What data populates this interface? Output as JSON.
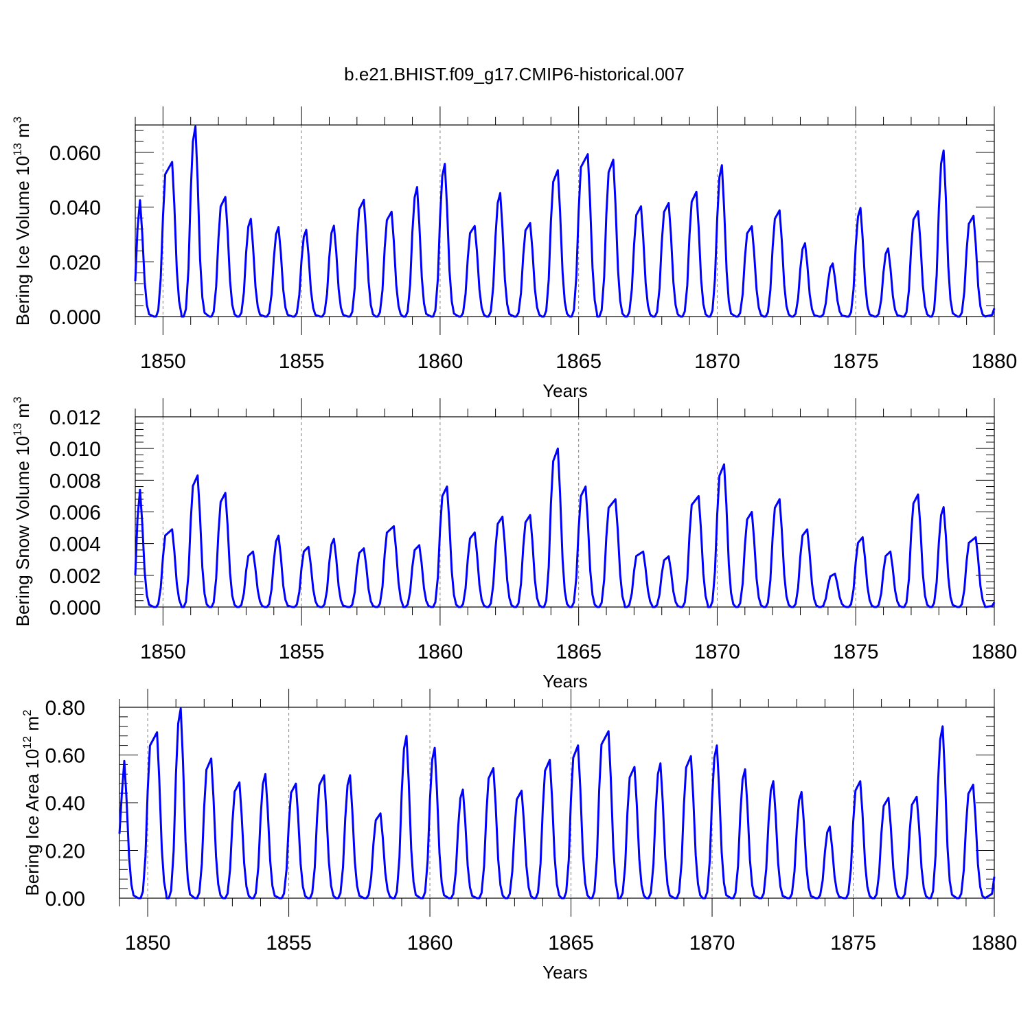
{
  "title": "b.e21.BHIST.f09_g17.CMIP6-historical.007",
  "colors": {
    "series": "#0000ff",
    "axis": "#000000",
    "grid": "#808080"
  },
  "chart_data": [
    {
      "type": "line",
      "title": "b.e21.BHIST.f09_g17.CMIP6-historical.007",
      "xlabel": "Years",
      "ylabel": "Bering Ice Volume 10",
      "ylabel_exp": "13",
      "ylabel_unit": " m",
      "ylabel_unit_exp": "3",
      "xlim": [
        1849,
        1880
      ],
      "ylim": [
        0,
        0.07
      ],
      "xticks": [
        1850,
        1855,
        1860,
        1865,
        1870,
        1875,
        1880
      ],
      "xtick_labels": [
        "1850",
        "1855",
        "1860",
        "1865",
        "1870",
        "1875",
        "1880"
      ],
      "yticks": [
        0,
        0.02,
        0.04,
        0.06
      ],
      "ytick_labels": [
        "0.000",
        "0.020",
        "0.040",
        "0.060"
      ],
      "grid": "dashed vertical at every 5 years",
      "series": [
        {
          "name": "Bering Ice Volume",
          "peak_years": [
            1849.17,
            1850.33,
            1851.17,
            1852.25,
            1853.17,
            1854.17,
            1855.17,
            1856.17,
            1857.25,
            1858.25,
            1859.17,
            1860.17,
            1861.25,
            1862.17,
            1863.25,
            1864.25,
            1865.33,
            1866.25,
            1867.25,
            1868.25,
            1869.25,
            1870.17,
            1871.25,
            1872.25,
            1873.17,
            1874.17,
            1875.17,
            1876.17,
            1877.25,
            1878.17,
            1879.25
          ],
          "peaks": [
            0.0425,
            0.0565,
            0.0695,
            0.0437,
            0.0357,
            0.0327,
            0.0317,
            0.0332,
            0.0426,
            0.0383,
            0.0473,
            0.0558,
            0.0331,
            0.0451,
            0.0342,
            0.0535,
            0.0593,
            0.0573,
            0.0403,
            0.0415,
            0.0456,
            0.0553,
            0.033,
            0.0388,
            0.0268,
            0.0194,
            0.0397,
            0.0249,
            0.0385,
            0.0607,
            0.0368
          ],
          "start_value": 0.013,
          "end_value": 0.003
        }
      ]
    },
    {
      "type": "line",
      "xlabel": "Years",
      "ylabel": "Bering Snow Volume 10",
      "ylabel_exp": "13",
      "ylabel_unit": " m",
      "ylabel_unit_exp": "3",
      "xlim": [
        1849,
        1880
      ],
      "ylim": [
        0,
        0.012
      ],
      "xticks": [
        1850,
        1855,
        1860,
        1865,
        1870,
        1875,
        1880
      ],
      "xtick_labels": [
        "1850",
        "1855",
        "1860",
        "1865",
        "1870",
        "1875",
        "1880"
      ],
      "yticks": [
        0,
        0.002,
        0.004,
        0.006,
        0.008,
        0.01,
        0.012
      ],
      "ytick_labels": [
        "0.000",
        "0.002",
        "0.004",
        "0.006",
        "0.008",
        "0.010",
        "0.012"
      ],
      "grid": "dashed vertical at every 5 years",
      "series": [
        {
          "name": "Bering Snow Volume",
          "peak_years": [
            1849.17,
            1850.33,
            1851.25,
            1852.25,
            1853.25,
            1854.17,
            1855.25,
            1856.17,
            1857.25,
            1858.33,
            1859.25,
            1860.25,
            1861.25,
            1862.25,
            1863.25,
            1864.25,
            1865.25,
            1866.33,
            1867.33,
            1868.25,
            1869.33,
            1870.25,
            1871.25,
            1872.25,
            1873.25,
            1874.25,
            1875.25,
            1876.25,
            1877.25,
            1878.17,
            1879.33
          ],
          "peaks": [
            0.0074,
            0.0049,
            0.0083,
            0.0072,
            0.0035,
            0.0045,
            0.0038,
            0.0043,
            0.0037,
            0.0051,
            0.0039,
            0.0076,
            0.0047,
            0.0057,
            0.0058,
            0.01,
            0.0076,
            0.0068,
            0.0035,
            0.0032,
            0.007,
            0.009,
            0.006,
            0.0068,
            0.0049,
            0.0021,
            0.0044,
            0.0035,
            0.0071,
            0.0063,
            0.0044
          ],
          "start_value": 0.002,
          "end_value": 0.0003
        }
      ]
    },
    {
      "type": "line",
      "xlabel": "Years",
      "ylabel": "Bering Ice Area 10",
      "ylabel_exp": "12",
      "ylabel_unit": " m",
      "ylabel_unit_exp": "2",
      "xlim": [
        1849,
        1880
      ],
      "ylim": [
        0,
        0.8
      ],
      "xticks": [
        1850,
        1855,
        1860,
        1865,
        1870,
        1875,
        1880
      ],
      "xtick_labels": [
        "1850",
        "1855",
        "1860",
        "1865",
        "1870",
        "1875",
        "1880"
      ],
      "yticks": [
        0,
        0.2,
        0.4,
        0.6,
        0.8
      ],
      "ytick_labels": [
        "0.00",
        "0.20",
        "0.40",
        "0.60",
        "0.80"
      ],
      "grid": "dashed vertical at every 5 years",
      "series": [
        {
          "name": "Bering Ice Area",
          "peak_years": [
            1849.17,
            1850.33,
            1851.17,
            1852.25,
            1853.25,
            1854.17,
            1855.25,
            1856.25,
            1857.17,
            1858.25,
            1859.17,
            1860.17,
            1861.17,
            1862.25,
            1863.25,
            1864.25,
            1865.25,
            1866.33,
            1867.25,
            1868.17,
            1869.25,
            1870.17,
            1871.17,
            1872.17,
            1873.17,
            1874.17,
            1875.25,
            1876.25,
            1877.25,
            1878.17,
            1879.25
          ],
          "peaks": [
            0.575,
            0.695,
            0.795,
            0.585,
            0.485,
            0.52,
            0.48,
            0.515,
            0.515,
            0.355,
            0.68,
            0.63,
            0.455,
            0.545,
            0.45,
            0.58,
            0.64,
            0.7,
            0.55,
            0.565,
            0.595,
            0.64,
            0.54,
            0.49,
            0.445,
            0.3,
            0.49,
            0.42,
            0.425,
            0.72,
            0.475
          ],
          "start_value": 0.27,
          "end_value": 0.09
        }
      ]
    }
  ]
}
